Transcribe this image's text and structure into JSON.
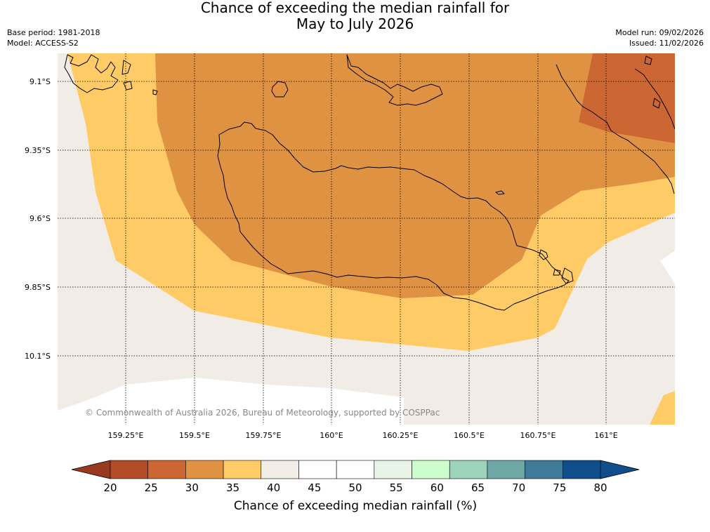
{
  "title": {
    "line1": "Chance of exceeding the median rainfall for",
    "line2": "May to July 2026"
  },
  "meta_left": {
    "base_period": "Base period: 1981-2018",
    "model": "Model: ACCESS-S2"
  },
  "meta_right": {
    "model_run": "Model run: 09/02/2026",
    "issued": "Issued: 11/02/2026"
  },
  "map": {
    "latitude_labels": [
      "9.1°S",
      "9.35°S",
      "9.6°S",
      "9.85°S",
      "10.1°S"
    ],
    "longitude_labels": [
      "159.25°E",
      "159.5°E",
      "159.75°E",
      "160°E",
      "160.25°E",
      "160.5°E",
      "160.75°E",
      "161°E"
    ],
    "credit": "© Commonwealth of Australia 2026, Bureau of Meteorology, supported by COSPPac",
    "colors": {
      "band_25_30": "#cc6633",
      "band_30_35": "#e09243",
      "band_35_40": "#fecb66",
      "band_40_45": "#f1ece6",
      "band_45_55": "#ffffff",
      "coastline": "#000000",
      "gridline": "#000000"
    }
  },
  "colorbar": {
    "ticks": [
      "20",
      "25",
      "30",
      "35",
      "40",
      "45",
      "50",
      "55",
      "60",
      "65",
      "70",
      "75",
      "80"
    ],
    "colors": [
      "#b24c26",
      "#cc6633",
      "#e09243",
      "#fecb66",
      "#f1ece6",
      "#ffffff",
      "#ffffff",
      "#e9f4e8",
      "#ccfdcc",
      "#9dd2bb",
      "#6fa6a6",
      "#407a99",
      "#104d8b"
    ],
    "under_color": "#993a20",
    "over_color": "#104d8b",
    "label": "Chance of exceeding median rainfall (%)"
  }
}
